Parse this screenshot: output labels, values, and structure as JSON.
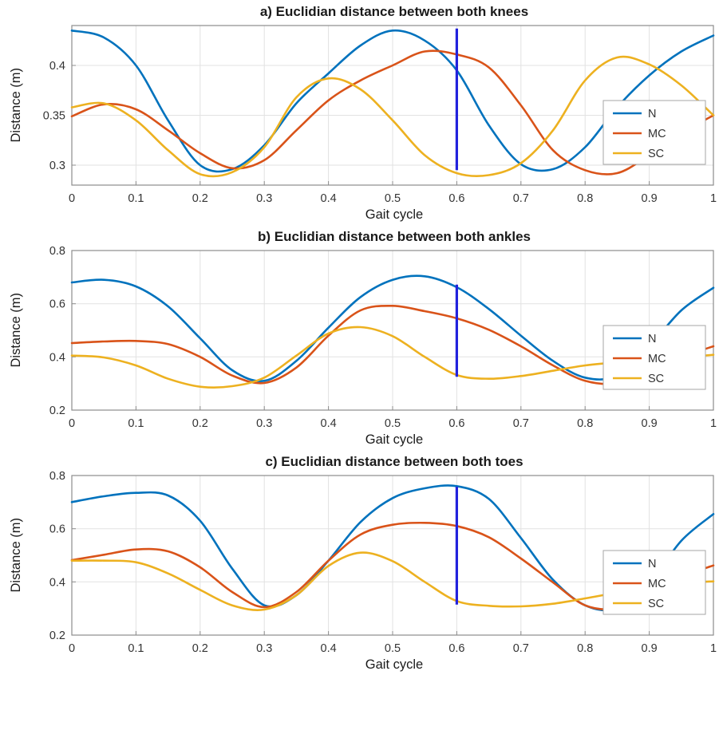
{
  "page": {
    "background": "#ffffff"
  },
  "style": {
    "grid_color": "#e2e2e2",
    "axis_color": "#8c8c8c",
    "tick_text_color": "#333333",
    "title_color": "#1a1a1a",
    "legend_border_color": "#a6a6a6",
    "legend_bg": "#ffffff"
  },
  "chart_data": [
    {
      "type": "line",
      "title": "a) Euclidian distance between both knees",
      "xlabel": "Gait cycle",
      "ylabel": "Distance (m)",
      "xlim": [
        0,
        1
      ],
      "ylim": [
        0.28,
        0.44
      ],
      "grid": true,
      "legend": {
        "position": "right-inside",
        "entries": [
          "N",
          "MC",
          "SC"
        ]
      },
      "xticks": {
        "values": [
          0,
          0.1,
          0.2,
          0.3,
          0.4,
          0.5,
          0.6,
          0.7,
          0.8,
          0.9,
          1
        ],
        "labels": [
          "0",
          "0.1",
          "0.2",
          "0.3",
          "0.4",
          "0.5",
          "0.6",
          "0.7",
          "0.8",
          "0.9",
          "1"
        ]
      },
      "yticks": {
        "values": [
          0.3,
          0.35,
          0.4
        ],
        "labels": [
          "0.3",
          "0.35",
          "0.4"
        ]
      },
      "x": [
        0,
        0.05,
        0.1,
        0.15,
        0.2,
        0.25,
        0.3,
        0.35,
        0.4,
        0.45,
        0.5,
        0.55,
        0.6,
        0.65,
        0.7,
        0.75,
        0.8,
        0.85,
        0.9,
        0.95,
        1
      ],
      "series": [
        {
          "name": "N",
          "color": "#0072BD",
          "values": [
            0.435,
            0.428,
            0.4,
            0.345,
            0.3,
            0.296,
            0.32,
            0.362,
            0.392,
            0.42,
            0.435,
            0.425,
            0.395,
            0.34,
            0.301,
            0.296,
            0.318,
            0.358,
            0.39,
            0.414,
            0.43
          ]
        },
        {
          "name": "MC",
          "color": "#D95319",
          "values": [
            0.349,
            0.361,
            0.356,
            0.335,
            0.312,
            0.297,
            0.305,
            0.335,
            0.365,
            0.385,
            0.4,
            0.414,
            0.411,
            0.398,
            0.36,
            0.315,
            0.295,
            0.292,
            0.31,
            0.332,
            0.35
          ]
        },
        {
          "name": "SC",
          "color": "#EDB120",
          "values": [
            0.358,
            0.362,
            0.345,
            0.315,
            0.291,
            0.293,
            0.318,
            0.368,
            0.387,
            0.376,
            0.345,
            0.31,
            0.292,
            0.29,
            0.302,
            0.335,
            0.385,
            0.408,
            0.401,
            0.38,
            0.35
          ]
        }
      ],
      "vline": {
        "x": 0.6,
        "color": "#2222dd",
        "y_from": 0.295,
        "y_to": 0.437
      }
    },
    {
      "type": "line",
      "title": "b) Euclidian distance between both ankles",
      "xlabel": "Gait cycle",
      "ylabel": "Distance (m)",
      "xlim": [
        0,
        1
      ],
      "ylim": [
        0.2,
        0.8
      ],
      "grid": true,
      "legend": {
        "position": "right-inside",
        "entries": [
          "N",
          "MC",
          "SC"
        ]
      },
      "xticks": {
        "values": [
          0,
          0.1,
          0.2,
          0.3,
          0.4,
          0.5,
          0.6,
          0.7,
          0.8,
          0.9,
          1
        ],
        "labels": [
          "0",
          "0.1",
          "0.2",
          "0.3",
          "0.4",
          "0.5",
          "0.6",
          "0.7",
          "0.8",
          "0.9",
          "1"
        ]
      },
      "yticks": {
        "values": [
          0.2,
          0.4,
          0.6,
          0.8
        ],
        "labels": [
          "0.2",
          "0.4",
          "0.6",
          "0.8"
        ]
      },
      "x": [
        0,
        0.05,
        0.1,
        0.15,
        0.2,
        0.25,
        0.3,
        0.35,
        0.4,
        0.45,
        0.5,
        0.55,
        0.6,
        0.65,
        0.7,
        0.75,
        0.8,
        0.85,
        0.9,
        0.95,
        1
      ],
      "series": [
        {
          "name": "N",
          "color": "#0072BD",
          "values": [
            0.68,
            0.69,
            0.665,
            0.59,
            0.47,
            0.35,
            0.31,
            0.385,
            0.51,
            0.625,
            0.69,
            0.703,
            0.662,
            0.58,
            0.48,
            0.385,
            0.322,
            0.33,
            0.44,
            0.575,
            0.66
          ]
        },
        {
          "name": "MC",
          "color": "#D95319",
          "values": [
            0.452,
            0.458,
            0.46,
            0.448,
            0.4,
            0.33,
            0.302,
            0.36,
            0.48,
            0.575,
            0.592,
            0.572,
            0.545,
            0.502,
            0.44,
            0.368,
            0.31,
            0.3,
            0.338,
            0.398,
            0.44
          ]
        },
        {
          "name": "SC",
          "color": "#EDB120",
          "values": [
            0.405,
            0.398,
            0.368,
            0.318,
            0.288,
            0.29,
            0.322,
            0.405,
            0.488,
            0.512,
            0.478,
            0.4,
            0.332,
            0.318,
            0.328,
            0.348,
            0.368,
            0.38,
            0.39,
            0.398,
            0.408
          ]
        }
      ],
      "vline": {
        "x": 0.6,
        "color": "#2222dd",
        "y_from": 0.325,
        "y_to": 0.672
      }
    },
    {
      "type": "line",
      "title": "c) Euclidian distance between both toes",
      "xlabel": "Gait cycle",
      "ylabel": "Distance (m)",
      "xlim": [
        0,
        1
      ],
      "ylim": [
        0.2,
        0.8
      ],
      "grid": true,
      "legend": {
        "position": "right-inside",
        "entries": [
          "N",
          "MC",
          "SC"
        ]
      },
      "xticks": {
        "values": [
          0,
          0.1,
          0.2,
          0.3,
          0.4,
          0.5,
          0.6,
          0.7,
          0.8,
          0.9,
          1
        ],
        "labels": [
          "0",
          "0.1",
          "0.2",
          "0.3",
          "0.4",
          "0.5",
          "0.6",
          "0.7",
          "0.8",
          "0.9",
          "1"
        ]
      },
      "yticks": {
        "values": [
          0.2,
          0.4,
          0.6,
          0.8
        ],
        "labels": [
          "0.2",
          "0.4",
          "0.6",
          "0.8"
        ]
      },
      "x": [
        0,
        0.05,
        0.1,
        0.15,
        0.2,
        0.25,
        0.3,
        0.35,
        0.4,
        0.45,
        0.5,
        0.55,
        0.6,
        0.65,
        0.7,
        0.75,
        0.8,
        0.85,
        0.9,
        0.95,
        1
      ],
      "series": [
        {
          "name": "N",
          "color": "#0072BD",
          "values": [
            0.7,
            0.722,
            0.735,
            0.725,
            0.63,
            0.45,
            0.312,
            0.35,
            0.48,
            0.625,
            0.715,
            0.752,
            0.76,
            0.712,
            0.565,
            0.408,
            0.312,
            0.3,
            0.395,
            0.555,
            0.655
          ]
        },
        {
          "name": "MC",
          "color": "#D95319",
          "values": [
            0.482,
            0.502,
            0.522,
            0.515,
            0.455,
            0.362,
            0.305,
            0.362,
            0.48,
            0.578,
            0.615,
            0.622,
            0.61,
            0.568,
            0.488,
            0.398,
            0.312,
            0.3,
            0.348,
            0.418,
            0.462
          ]
        },
        {
          "name": "SC",
          "color": "#EDB120",
          "values": [
            0.48,
            0.48,
            0.474,
            0.432,
            0.37,
            0.312,
            0.296,
            0.35,
            0.46,
            0.51,
            0.478,
            0.4,
            0.328,
            0.31,
            0.308,
            0.318,
            0.338,
            0.36,
            0.38,
            0.396,
            0.402
          ]
        }
      ],
      "vline": {
        "x": 0.6,
        "color": "#2222dd",
        "y_from": 0.315,
        "y_to": 0.758
      }
    }
  ]
}
